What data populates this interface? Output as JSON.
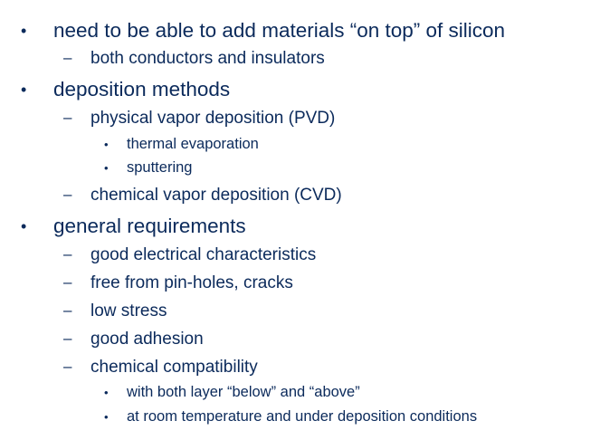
{
  "markers": {
    "level1": "•",
    "level2": "–",
    "level3": "•"
  },
  "bullets": [
    {
      "text": "need to be able to add materials “on top” of silicon",
      "children": [
        {
          "text": "both conductors and insulators"
        }
      ]
    },
    {
      "text": "deposition methods",
      "children": [
        {
          "text": "physical vapor deposition (PVD)",
          "children": [
            {
              "text": "thermal evaporation"
            },
            {
              "text": "sputtering"
            }
          ]
        },
        {
          "text": "chemical vapor deposition (CVD)"
        }
      ]
    },
    {
      "text": "general requirements",
      "children": [
        {
          "text": "good electrical characteristics"
        },
        {
          "text": "free from pin-holes, cracks"
        },
        {
          "text": "low stress"
        },
        {
          "text": "good adhesion"
        },
        {
          "text": "chemical compatibility",
          "children": [
            {
              "text": "with both layer “below” and “above”"
            },
            {
              "text": "at room temperature and under deposition conditions"
            }
          ]
        }
      ]
    }
  ]
}
